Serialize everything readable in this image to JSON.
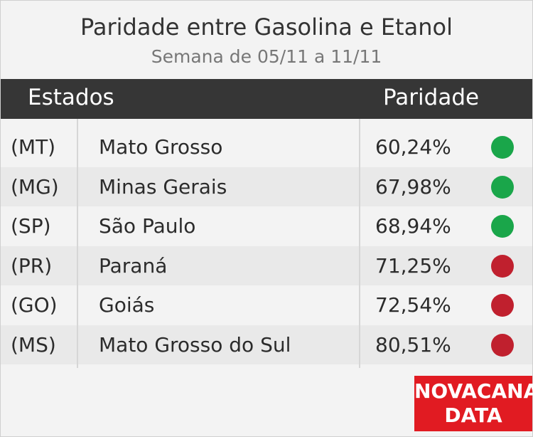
{
  "header": {
    "title": "Paridade entre Gasolina e Etanol",
    "subtitle": "Semana de 05/11 a 11/11"
  },
  "table": {
    "columns": [
      "Estados",
      "Paridade"
    ],
    "rows": [
      [
        "(MT)",
        "Mato Grosso",
        "60,24%"
      ],
      [
        "(MG)",
        "Minas Gerais",
        "67,98%"
      ],
      [
        "(SP)",
        "São Paulo",
        "68,94%"
      ],
      [
        "(PR)",
        "Paraná",
        "71,25%"
      ],
      [
        "(GO)",
        "Goiás",
        "72,54%"
      ],
      [
        "(MS)",
        "Mato Grosso do Sul",
        "80,51%"
      ]
    ],
    "indicators": [
      "#1aa64a",
      "#1aa64a",
      "#1aa64a",
      "#c0202e",
      "#c0202e",
      "#c0202e"
    ]
  },
  "brand": {
    "line1": "NOVACANA",
    "line2": "DATA"
  }
}
